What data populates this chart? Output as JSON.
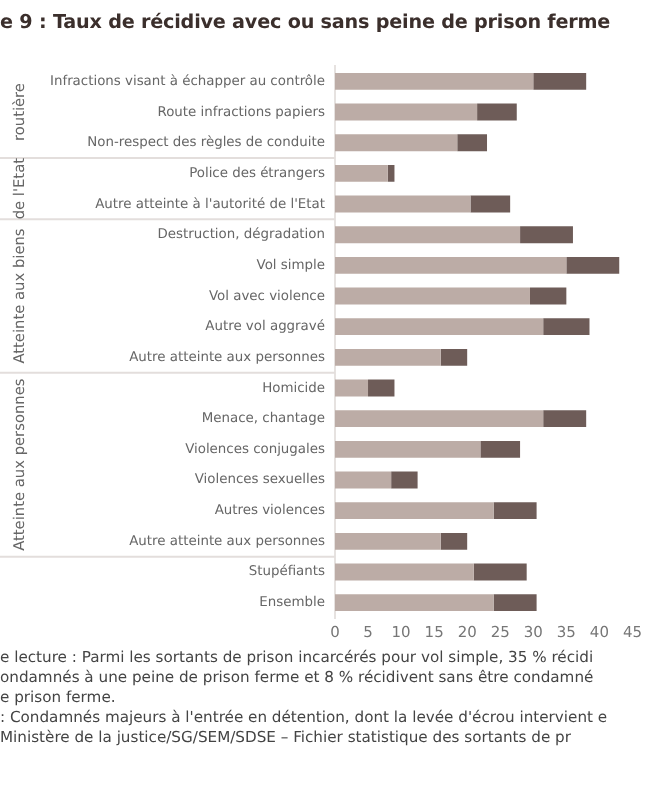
{
  "chart_data": {
    "type": "bar",
    "orientation": "horizontal",
    "stacked": true,
    "title": "e 9 : Taux de récidive avec ou sans peine de prison ferme",
    "categories": [
      "Infractions visant à échapper au contrôle",
      "Route infractions papiers",
      "Non-respect des règles de conduite",
      "Police des étrangers",
      "Autre atteinte à l'autorité de l'Etat",
      "Destruction, dégradation",
      "Vol simple",
      "Vol avec violence",
      "Autre vol aggravé",
      "Autre atteinte aux personnes",
      "Homicide",
      "Menace, chantage",
      "Violences conjugales",
      "Violences sexuelles",
      "Autres violences",
      "Autre atteinte aux personnes",
      "Stupéfiants",
      "Ensemble"
    ],
    "series": [
      {
        "color": "#bcaca6",
        "values": [
          30,
          21.5,
          18.5,
          8,
          20.5,
          28,
          35,
          29.5,
          31.5,
          16,
          5,
          31.5,
          22,
          8.5,
          24,
          16,
          21,
          24
        ]
      },
      {
        "color": "#6e5c58",
        "values": [
          8,
          6,
          4.5,
          1,
          6,
          8,
          8,
          5.5,
          7,
          4,
          4,
          6.5,
          6,
          4,
          6.5,
          4,
          8,
          6.5
        ]
      }
    ],
    "xlim": [
      0,
      45
    ],
    "xticks": [
      0,
      5,
      10,
      15,
      20,
      25,
      30,
      35,
      40,
      45
    ],
    "grid": false,
    "legend": false,
    "annotations": [
      "routière",
      "de l'Etat",
      "Atteinte aux biens",
      "Atteinte aux personnes",
      "e lecture : Parmi les sortants de prison incarcérés pour vol simple, 35 % récidi",
      "ondamnés à une peine de prison ferme et 8 % récidivent sans être condamné",
      "e prison ferme.",
      ": Condamnés majeurs à l'entrée en détention, dont la levée d'écrou intervient e",
      "Ministère de la justice/SG/SEM/SDSE – Fichier statistique des sortants de pr"
    ]
  }
}
